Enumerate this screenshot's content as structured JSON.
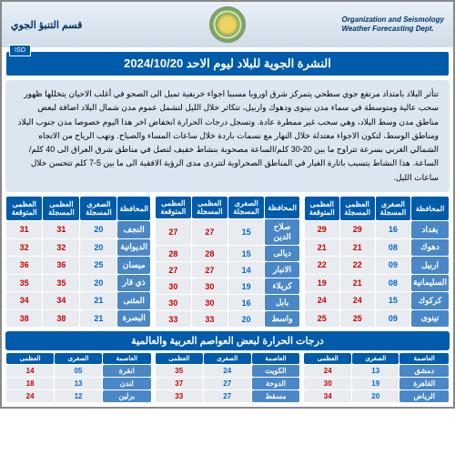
{
  "header": {
    "org_en_1": "Organization and Seismology",
    "org_en_2": "Weather Forecasting Dept.",
    "org_ar": "قسم التنبؤ الجوي",
    "iso": "ISO"
  },
  "title": "النشرة الجوية للبلاد ليوم الاحد 2024/10/20",
  "narrative": "تتأثر البلاد بامتداد مرتفع جوي سطحي يتمركز شرق اوروبا مسببا اجواء خريفية تميل الى الصحو في أغلب الاحيان يتخللها ظهور سحب عالية ومتوسطة في سماء مدن نينوى ودهوك واربيل، تتكاثر خلال الليل لتشمل عموم مدن شمال البلاد اضافة لبعض مناطق مدن وسط البلاد، وهي سحب غير ممطرة عادة.\nوتسجل درجات الحرارة انخفاض اخر هذا اليوم خصوصا مدن جنوب البلاد ومناطق الوسط، لتكون الاجواء معتدلة خلال النهار مع نسمات باردة خلال ساعات المساء والصباح.\nوتهب الرياح من الاتجاه الشمالي الغربي بسرعة تتراوح ما بين 20-30 كلم/الساعة مصحوبة بنشاط خفيف لتصل في مناطق شرق العراق الى 40 كلم/الساعة. هذا النشاط يتسبب باثارة الغبار في المناطق الصحراوية لتتردى مدى الرؤية الافقية الى ما بين 5-7 كلم تتحسن خلال ساعات الليل.",
  "columns": {
    "prov": "المحافظة",
    "low": "الصغرى المسجلة",
    "high": "العظمى المسجلة",
    "exp": "العظمى المتوقعة"
  },
  "iraq_right": [
    {
      "p": "بغداد",
      "l": "16",
      "h": "29",
      "e": "29"
    },
    {
      "p": "دهوك",
      "l": "08",
      "h": "21",
      "e": "21"
    },
    {
      "p": "اربيل",
      "l": "09",
      "h": "22",
      "e": "22"
    },
    {
      "p": "السليمانية",
      "l": "08",
      "h": "21",
      "e": "19"
    },
    {
      "p": "كركوك",
      "l": "15",
      "h": "24",
      "e": "24"
    },
    {
      "p": "نينوى",
      "l": "09",
      "h": "25",
      "e": "25"
    }
  ],
  "iraq_mid": [
    {
      "p": "صلاح الدين",
      "l": "15",
      "h": "27",
      "e": "27"
    },
    {
      "p": "ديالى",
      "l": "15",
      "h": "28",
      "e": "28"
    },
    {
      "p": "الانبار",
      "l": "14",
      "h": "27",
      "e": "27"
    },
    {
      "p": "كربلاء",
      "l": "19",
      "h": "30",
      "e": "30"
    },
    {
      "p": "بابل",
      "l": "16",
      "h": "30",
      "e": "30"
    },
    {
      "p": "واسط",
      "l": "20",
      "h": "33",
      "e": "33"
    }
  ],
  "iraq_left": [
    {
      "p": "النجف",
      "l": "20",
      "h": "31",
      "e": "31"
    },
    {
      "p": "الديوانية",
      "l": "20",
      "h": "32",
      "e": "32"
    },
    {
      "p": "ميسان",
      "l": "25",
      "h": "36",
      "e": "36"
    },
    {
      "p": "ذي قار",
      "l": "20",
      "h": "35",
      "e": "35"
    },
    {
      "p": "المثنى",
      "l": "21",
      "h": "34",
      "e": "34"
    },
    {
      "p": "البصرة",
      "l": "21",
      "h": "38",
      "e": "38"
    }
  ],
  "world_title": "درجات الحرارة لبعض العواصم العربية والعالمية",
  "world_cols": {
    "c": "العاصمة",
    "l": "الصغرى",
    "h": "العظمى"
  },
  "world1": [
    {
      "c": "دمشق",
      "l": "13",
      "h": "24"
    },
    {
      "c": "القاهرة",
      "l": "19",
      "h": "30"
    },
    {
      "c": "الرياض",
      "l": "20",
      "h": "34"
    }
  ],
  "world2": [
    {
      "c": "الكويت",
      "l": "24",
      "h": "35"
    },
    {
      "c": "الدوحة",
      "l": "27",
      "h": "37"
    },
    {
      "c": "مسقط",
      "l": "27",
      "h": "33"
    }
  ],
  "world3": [
    {
      "c": "انقرة",
      "l": "05",
      "h": "14"
    },
    {
      "c": "لندن",
      "l": "13",
      "h": "18"
    },
    {
      "c": "برلين",
      "l": "12",
      "h": "24"
    }
  ]
}
